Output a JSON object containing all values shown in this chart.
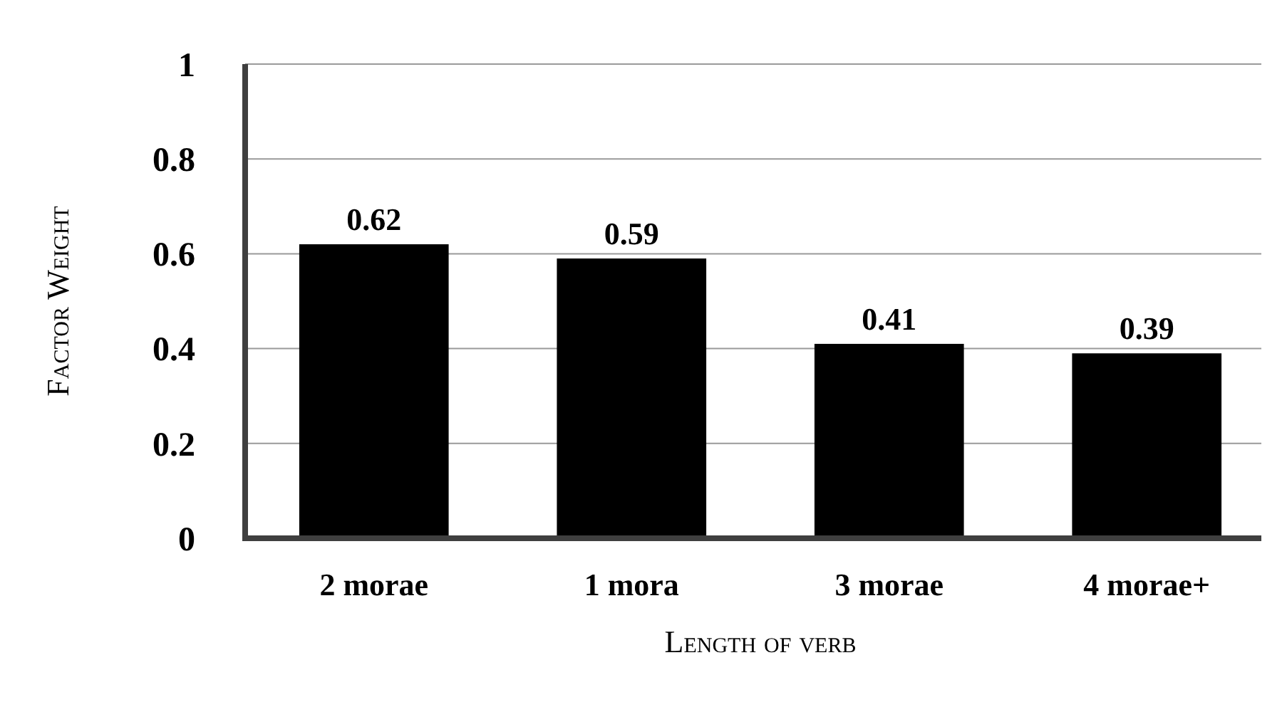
{
  "chart_data": {
    "type": "bar",
    "xlabel": "Length of verb",
    "ylabel": "Factor Weight",
    "categories": [
      "2 morae",
      "1 mora",
      "3 morae",
      "4 morae+"
    ],
    "values": [
      0.62,
      0.59,
      0.41,
      0.39
    ],
    "color": "#000000",
    "ylim": [
      0,
      1
    ],
    "yticks": [
      0,
      0.2,
      0.4,
      0.6,
      0.8,
      1
    ],
    "grid": "y",
    "data_labels": true
  }
}
